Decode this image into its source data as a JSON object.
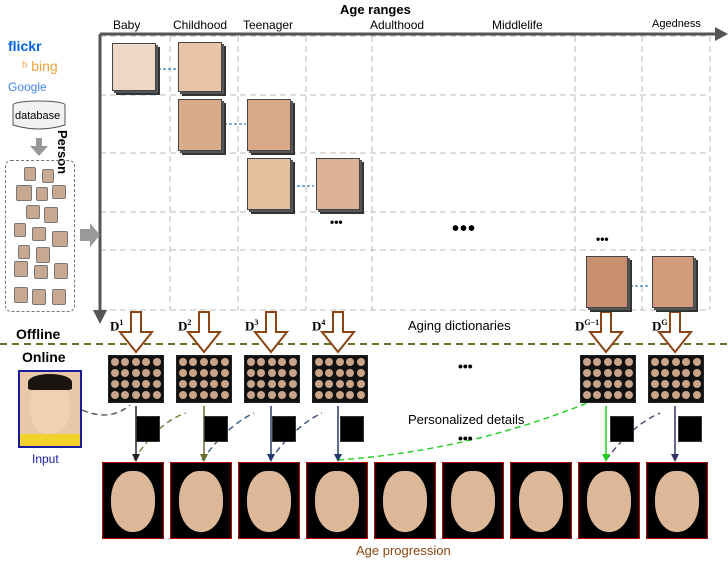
{
  "header": {
    "title": "Age ranges",
    "person_label": "Person"
  },
  "age_ranges": [
    "Baby",
    "Childhood",
    "Teenager",
    "Adulthood",
    "Middlelife",
    "Agedness"
  ],
  "sources": {
    "flickr": "flickr",
    "bing": "bing",
    "google": "Google",
    "database": "database"
  },
  "ellipsis": {
    "small": "•••",
    "large": "•••"
  },
  "dictionaries": {
    "title": "Aging dictionaries",
    "labels": [
      {
        "base": "D",
        "sup": "1"
      },
      {
        "base": "D",
        "sup": "2"
      },
      {
        "base": "D",
        "sup": "3"
      },
      {
        "base": "D",
        "sup": "4"
      },
      {
        "base": "D",
        "sup": "G−1"
      },
      {
        "base": "D",
        "sup": "G"
      }
    ]
  },
  "phases": {
    "offline": "Offline",
    "online": "Online"
  },
  "input_label": "Input",
  "details_label": "Personalized details",
  "progression_label": "Age progression",
  "colors": {
    "input_border": "#1a1aa0",
    "result_border": "#c00000",
    "arrow_brown": "#8b4513",
    "green_link": "#22cc22",
    "dash_divider": "#6b6b2a"
  }
}
